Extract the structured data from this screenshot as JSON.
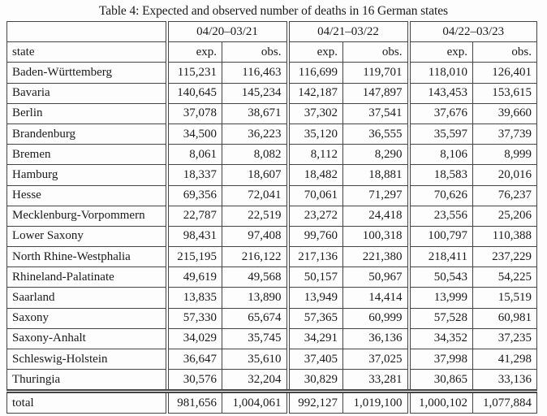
{
  "caption": "Table 4: Expected and observed number of deaths in 16 German states",
  "table": {
    "periods": [
      "04/20–03/21",
      "04/21–03/22",
      "04/22–03/23"
    ],
    "state_header": "state",
    "exp_label": "exp.",
    "obs_label": "obs.",
    "rows": [
      {
        "state": "Baden-Württemberg",
        "values": [
          "115,231",
          "116,463",
          "116,699",
          "119,701",
          "118,010",
          "126,401"
        ]
      },
      {
        "state": "Bavaria",
        "values": [
          "140,645",
          "145,234",
          "142,187",
          "147,897",
          "143,453",
          "153,615"
        ]
      },
      {
        "state": "Berlin",
        "values": [
          "37,078",
          "38,671",
          "37,302",
          "37,541",
          "37,676",
          "39,660"
        ]
      },
      {
        "state": "Brandenburg",
        "values": [
          "34,500",
          "36,223",
          "35,120",
          "36,555",
          "35,597",
          "37,739"
        ]
      },
      {
        "state": "Bremen",
        "values": [
          "8,061",
          "8,082",
          "8,112",
          "8,290",
          "8,106",
          "8,999"
        ]
      },
      {
        "state": "Hamburg",
        "values": [
          "18,337",
          "18,607",
          "18,482",
          "18,881",
          "18,583",
          "20,016"
        ]
      },
      {
        "state": "Hesse",
        "values": [
          "69,356",
          "72,041",
          "70,061",
          "71,297",
          "70,626",
          "76,237"
        ]
      },
      {
        "state": "Mecklenburg-Vorpommern",
        "values": [
          "22,787",
          "22,519",
          "23,272",
          "24,418",
          "23,556",
          "25,206"
        ]
      },
      {
        "state": "Lower Saxony",
        "values": [
          "98,431",
          "97,408",
          "99,760",
          "100,318",
          "100,797",
          "110,388"
        ]
      },
      {
        "state": "North Rhine-Westphalia",
        "values": [
          "215,195",
          "216,122",
          "217,136",
          "221,380",
          "218,411",
          "237,229"
        ]
      },
      {
        "state": "Rhineland-Palatinate",
        "values": [
          "49,619",
          "49,568",
          "50,157",
          "50,967",
          "50,543",
          "54,225"
        ]
      },
      {
        "state": "Saarland",
        "values": [
          "13,835",
          "13,890",
          "13,949",
          "14,414",
          "13,999",
          "15,519"
        ]
      },
      {
        "state": "Saxony",
        "values": [
          "57,330",
          "65,674",
          "57,365",
          "60,999",
          "57,528",
          "60,981"
        ]
      },
      {
        "state": "Saxony-Anhalt",
        "values": [
          "34,029",
          "35,745",
          "34,291",
          "36,136",
          "34,352",
          "37,235"
        ]
      },
      {
        "state": "Schleswig-Holstein",
        "values": [
          "36,647",
          "35,610",
          "37,405",
          "37,025",
          "37,998",
          "41,298"
        ]
      },
      {
        "state": "Thuringia",
        "values": [
          "30,576",
          "32,204",
          "30,829",
          "33,281",
          "30,865",
          "33,136"
        ]
      }
    ],
    "total": {
      "state": "total",
      "values": [
        "981,656",
        "1,004,061",
        "992,127",
        "1,019,100",
        "1,000,102",
        "1,077,884"
      ]
    }
  }
}
